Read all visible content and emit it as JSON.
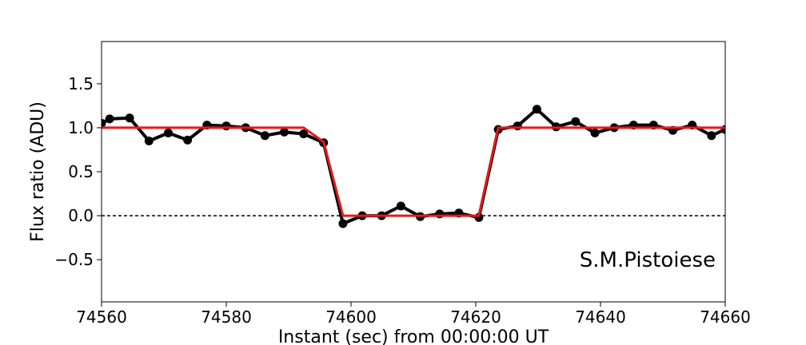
{
  "chart_data": {
    "type": "line",
    "title": "",
    "xlabel": "Instant (sec) from 00:00:00 UT",
    "ylabel": "Flux ratio (ADU)",
    "xlim": [
      74560,
      74660
    ],
    "ylim": [
      -0.98,
      1.98
    ],
    "x_ticks": [
      74560,
      74580,
      74600,
      74620,
      74640,
      74660
    ],
    "y_ticks": [
      -0.5,
      0.0,
      0.5,
      1.0,
      1.5
    ],
    "x_tick_labels": [
      "74560",
      "74580",
      "74600",
      "74620",
      "74640",
      "74660"
    ],
    "y_tick_labels": [
      "−0.5",
      "0.0",
      "0.5",
      "1.0",
      "1.5"
    ],
    "annotation": "S.M.Pistoiese",
    "grid": false,
    "zero_line": {
      "y": 0.0,
      "style": "dashed",
      "color": "#000000"
    },
    "series": [
      {
        "style": "line-markers",
        "color": "#000000",
        "x": [
          74560.0,
          74561.3,
          74564.5,
          74567.6,
          74570.7,
          74573.8,
          74576.9,
          74580.0,
          74583.1,
          74586.2,
          74589.3,
          74592.4,
          74595.6,
          74598.7,
          74601.8,
          74604.9,
          74608.0,
          74611.1,
          74614.2,
          74617.3,
          74620.5,
          74623.6,
          74626.7,
          74629.8,
          74632.9,
          74636.0,
          74639.1,
          74642.2,
          74645.3,
          74648.5,
          74651.6,
          74654.7,
          74657.8,
          74660.0
        ],
        "y": [
          1.05,
          1.1,
          1.11,
          0.85,
          0.94,
          0.86,
          1.03,
          1.02,
          1.0,
          0.91,
          0.95,
          0.93,
          0.83,
          -0.09,
          0.0,
          0.0,
          0.11,
          -0.01,
          0.02,
          0.03,
          -0.02,
          0.98,
          1.02,
          1.21,
          1.01,
          1.07,
          0.94,
          1.0,
          1.03,
          1.03,
          0.97,
          1.03,
          0.91,
          0.98
        ]
      },
      {
        "style": "line",
        "color": "#e41a1c",
        "x": [
          74560.0,
          74592.4,
          74595.6,
          74598.7,
          74620.5,
          74623.6,
          74660.0
        ],
        "y": [
          1.0,
          1.0,
          0.84,
          0.0,
          0.0,
          1.0,
          1.0
        ]
      }
    ]
  }
}
